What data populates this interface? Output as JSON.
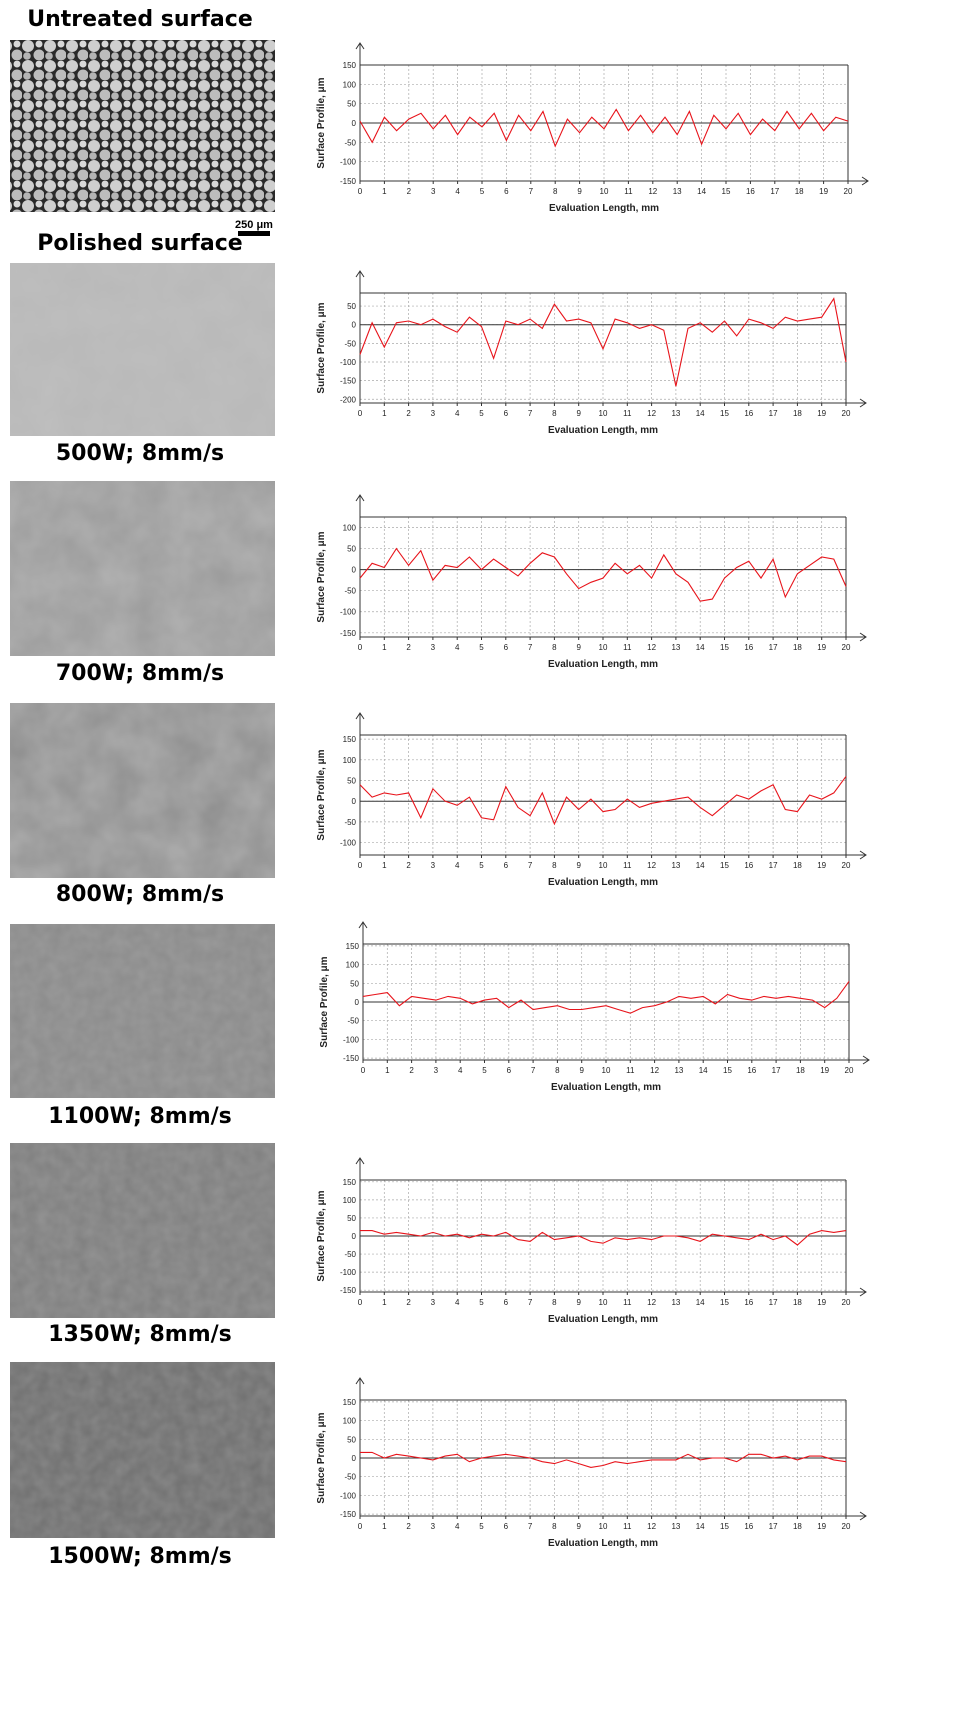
{
  "labels": [
    "Untreated surface",
    "Polished surface",
    "500W; 8mm/s",
    "700W; 8mm/s",
    "800W; 8mm/s",
    "1100W; 8mm/s",
    "1350W; 8mm/s",
    "1500W; 8mm/s"
  ],
  "scale_bar": "250 μm",
  "chart_data": [
    {
      "type": "line",
      "x_label": "Evaluation Length, mm",
      "y_label": "Surface Profile, μm",
      "color": "#e8141b",
      "grid": true,
      "xlim": [
        0,
        20
      ],
      "xticks": [
        0,
        1,
        2,
        3,
        4,
        5,
        6,
        7,
        8,
        9,
        10,
        11,
        12,
        13,
        14,
        15,
        16,
        17,
        18,
        19,
        20
      ],
      "ylim": [
        -150,
        150
      ],
      "yticks": [
        150,
        100,
        50,
        0,
        -50,
        -100,
        -150
      ],
      "x": [
        0,
        0.5,
        1,
        1.5,
        2,
        2.5,
        3,
        3.5,
        4,
        4.5,
        5,
        5.5,
        6,
        6.5,
        7,
        7.5,
        8,
        8.5,
        9,
        9.5,
        10,
        10.5,
        11,
        11.5,
        12,
        12.5,
        13,
        13.5,
        14,
        14.5,
        15,
        15.5,
        16,
        16.5,
        17,
        17.5,
        18,
        18.5,
        19,
        19.5,
        20
      ],
      "values": [
        5,
        -50,
        15,
        -20,
        10,
        25,
        -15,
        20,
        -30,
        15,
        -10,
        25,
        -45,
        20,
        -20,
        30,
        -60,
        10,
        -25,
        15,
        -15,
        35,
        -20,
        20,
        -25,
        15,
        -30,
        30,
        -55,
        20,
        -15,
        25,
        -30,
        10,
        -20,
        30,
        -15,
        25,
        -20,
        15,
        5
      ]
    },
    {
      "type": "line",
      "x_label": "Evaluation Length, mm",
      "y_label": "Surface Profile, μm",
      "color": "#e8141b",
      "grid": true,
      "xlim": [
        0,
        20
      ],
      "xticks": [
        0,
        1,
        2,
        3,
        4,
        5,
        6,
        7,
        8,
        9,
        10,
        11,
        12,
        13,
        14,
        15,
        16,
        17,
        18,
        19,
        20
      ],
      "ylim": [
        -210,
        85
      ],
      "yticks": [
        50,
        0,
        -50,
        -100,
        -150,
        -200
      ],
      "x": [
        0,
        0.5,
        1,
        1.5,
        2,
        2.5,
        3,
        3.5,
        4,
        4.5,
        5,
        5.5,
        6,
        6.5,
        7,
        7.5,
        8,
        8.5,
        9,
        9.5,
        10,
        10.5,
        11,
        11.5,
        12,
        12.5,
        13,
        13.5,
        14,
        14.5,
        15,
        15.5,
        16,
        16.5,
        17,
        17.5,
        18,
        18.5,
        19,
        19.5,
        20
      ],
      "values": [
        -80,
        5,
        -60,
        5,
        10,
        0,
        15,
        -5,
        -20,
        20,
        -5,
        -90,
        10,
        0,
        15,
        -10,
        55,
        10,
        15,
        5,
        -65,
        15,
        5,
        -10,
        0,
        -15,
        -165,
        -10,
        5,
        -20,
        10,
        -30,
        15,
        5,
        -10,
        20,
        10,
        15,
        20,
        70,
        -100
      ]
    },
    {
      "type": "line",
      "x_label": "Evaluation Length, mm",
      "y_label": "Surface Profile, μm",
      "color": "#e8141b",
      "grid": true,
      "xlim": [
        0,
        20
      ],
      "xticks": [
        0,
        1,
        2,
        3,
        4,
        5,
        6,
        7,
        8,
        9,
        10,
        11,
        12,
        13,
        14,
        15,
        16,
        17,
        18,
        19,
        20
      ],
      "ylim": [
        -160,
        125
      ],
      "yticks": [
        100,
        50,
        0,
        -50,
        -100,
        -150
      ],
      "x": [
        0,
        0.5,
        1,
        1.5,
        2,
        2.5,
        3,
        3.5,
        4,
        4.5,
        5,
        5.5,
        6,
        6.5,
        7,
        7.5,
        8,
        8.5,
        9,
        9.5,
        10,
        10.5,
        11,
        11.5,
        12,
        12.5,
        13,
        13.5,
        14,
        14.5,
        15,
        15.5,
        16,
        16.5,
        17,
        17.5,
        18,
        18.5,
        19,
        19.5,
        20
      ],
      "values": [
        -20,
        15,
        5,
        50,
        10,
        45,
        -25,
        10,
        5,
        30,
        0,
        25,
        5,
        -15,
        15,
        40,
        30,
        -10,
        -45,
        -30,
        -20,
        15,
        -10,
        10,
        -20,
        35,
        -10,
        -30,
        -75,
        -70,
        -20,
        5,
        20,
        -20,
        25,
        -65,
        -10,
        10,
        30,
        25,
        -40
      ]
    },
    {
      "type": "line",
      "x_label": "Evaluation Length, mm",
      "y_label": "Surface Profile, μm",
      "color": "#e8141b",
      "grid": true,
      "xlim": [
        0,
        20
      ],
      "xticks": [
        0,
        1,
        2,
        3,
        4,
        5,
        6,
        7,
        8,
        9,
        10,
        11,
        12,
        13,
        14,
        15,
        16,
        17,
        18,
        19,
        20
      ],
      "ylim": [
        -130,
        160
      ],
      "yticks": [
        150,
        100,
        50,
        0,
        -50,
        -100
      ],
      "x": [
        0,
        0.5,
        1,
        1.5,
        2,
        2.5,
        3,
        3.5,
        4,
        4.5,
        5,
        5.5,
        6,
        6.5,
        7,
        7.5,
        8,
        8.5,
        9,
        9.5,
        10,
        10.5,
        11,
        11.5,
        12,
        12.5,
        13,
        13.5,
        14,
        14.5,
        15,
        15.5,
        16,
        16.5,
        17,
        17.5,
        18,
        18.5,
        19,
        19.5,
        20
      ],
      "values": [
        40,
        10,
        20,
        15,
        20,
        -40,
        30,
        0,
        -10,
        10,
        -40,
        -45,
        35,
        -15,
        -35,
        20,
        -55,
        10,
        -20,
        5,
        -25,
        -20,
        5,
        -15,
        -5,
        0,
        5,
        10,
        -15,
        -35,
        -10,
        15,
        5,
        25,
        40,
        -20,
        -25,
        15,
        5,
        20,
        60
      ]
    },
    {
      "type": "line",
      "x_label": "Evaluation Length, mm",
      "y_label": "Surface Profile, μm",
      "color": "#e8141b",
      "grid": true,
      "xlim": [
        0,
        20
      ],
      "xticks": [
        0,
        1,
        2,
        3,
        4,
        5,
        6,
        7,
        8,
        9,
        10,
        11,
        12,
        13,
        14,
        15,
        16,
        17,
        18,
        19,
        20
      ],
      "ylim": [
        -155,
        155
      ],
      "yticks": [
        150,
        100,
        50,
        0,
        -50,
        -100,
        -150
      ],
      "x": [
        0,
        0.5,
        1,
        1.5,
        2,
        2.5,
        3,
        3.5,
        4,
        4.5,
        5,
        5.5,
        6,
        6.5,
        7,
        7.5,
        8,
        8.5,
        9,
        9.5,
        10,
        10.5,
        11,
        11.5,
        12,
        12.5,
        13,
        13.5,
        14,
        14.5,
        15,
        15.5,
        16,
        16.5,
        17,
        17.5,
        18,
        18.5,
        19,
        19.5,
        20
      ],
      "values": [
        15,
        20,
        25,
        -10,
        15,
        10,
        5,
        15,
        10,
        -5,
        5,
        10,
        -15,
        5,
        -20,
        -15,
        -10,
        -20,
        -20,
        -15,
        -10,
        -20,
        -30,
        -15,
        -10,
        0,
        15,
        10,
        15,
        -5,
        20,
        10,
        5,
        15,
        10,
        15,
        10,
        5,
        -15,
        10,
        55
      ]
    },
    {
      "type": "line",
      "x_label": "Evaluation Length, mm",
      "y_label": "Surface Profile, μm",
      "color": "#e8141b",
      "grid": true,
      "xlim": [
        0,
        20
      ],
      "xticks": [
        0,
        1,
        2,
        3,
        4,
        5,
        6,
        7,
        8,
        9,
        10,
        11,
        12,
        13,
        14,
        15,
        16,
        17,
        18,
        19,
        20
      ],
      "ylim": [
        -155,
        155
      ],
      "yticks": [
        150,
        100,
        50,
        0,
        -50,
        -100,
        -150
      ],
      "x": [
        0,
        0.5,
        1,
        1.5,
        2,
        2.5,
        3,
        3.5,
        4,
        4.5,
        5,
        5.5,
        6,
        6.5,
        7,
        7.5,
        8,
        8.5,
        9,
        9.5,
        10,
        10.5,
        11,
        11.5,
        12,
        12.5,
        13,
        13.5,
        14,
        14.5,
        15,
        15.5,
        16,
        16.5,
        17,
        17.5,
        18,
        18.5,
        19,
        19.5,
        20
      ],
      "values": [
        15,
        15,
        5,
        10,
        5,
        0,
        10,
        0,
        5,
        -5,
        5,
        0,
        10,
        -10,
        -15,
        10,
        -10,
        -5,
        0,
        -15,
        -20,
        -5,
        -10,
        -5,
        -10,
        0,
        0,
        -5,
        -15,
        5,
        0,
        -5,
        -10,
        5,
        -10,
        0,
        -25,
        5,
        15,
        10,
        15
      ]
    },
    {
      "type": "line",
      "x_label": "Evaluation Length, mm",
      "y_label": "Surface Profile, μm",
      "color": "#e8141b",
      "grid": true,
      "xlim": [
        0,
        20
      ],
      "xticks": [
        0,
        1,
        2,
        3,
        4,
        5,
        6,
        7,
        8,
        9,
        10,
        11,
        12,
        13,
        14,
        15,
        16,
        17,
        18,
        19,
        20
      ],
      "ylim": [
        -155,
        155
      ],
      "yticks": [
        150,
        100,
        50,
        0,
        -50,
        -100,
        -150
      ],
      "x": [
        0,
        0.5,
        1,
        1.5,
        2,
        2.5,
        3,
        3.5,
        4,
        4.5,
        5,
        5.5,
        6,
        6.5,
        7,
        7.5,
        8,
        8.5,
        9,
        9.5,
        10,
        10.5,
        11,
        11.5,
        12,
        12.5,
        13,
        13.5,
        14,
        14.5,
        15,
        15.5,
        16,
        16.5,
        17,
        17.5,
        18,
        18.5,
        19,
        19.5,
        20
      ],
      "values": [
        15,
        15,
        0,
        10,
        5,
        0,
        -5,
        5,
        10,
        -10,
        0,
        5,
        10,
        5,
        0,
        -10,
        -15,
        -5,
        -15,
        -25,
        -20,
        -10,
        -15,
        -10,
        -5,
        -5,
        -5,
        10,
        -5,
        0,
        0,
        -10,
        10,
        10,
        0,
        5,
        -5,
        5,
        5,
        -5,
        -10
      ]
    }
  ]
}
